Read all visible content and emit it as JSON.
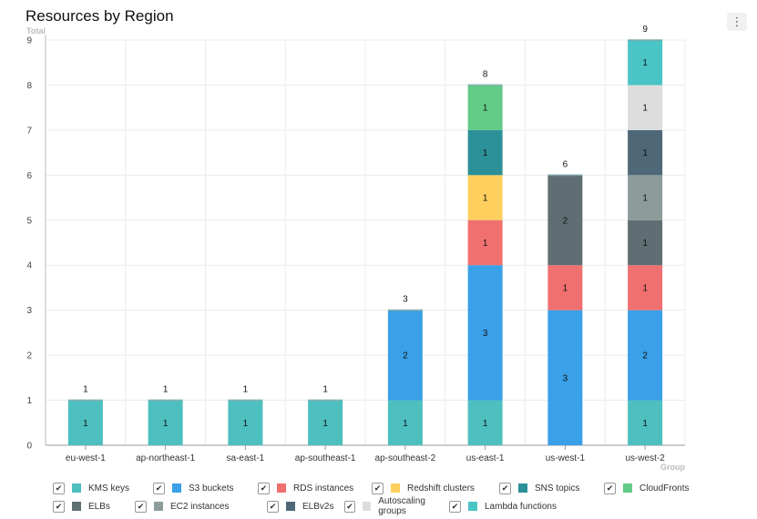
{
  "header": {
    "title": "Resources by Region",
    "menu_icon": "⋮"
  },
  "chart_data": {
    "type": "bar",
    "stacked": true,
    "title": "Resources by Region",
    "ylabel": "Total",
    "xlabel": "Group",
    "ylim": [
      0,
      9
    ],
    "yticks": [
      "0",
      "1",
      "2",
      "3",
      "4",
      "5",
      "6",
      "7",
      "8",
      "9"
    ],
    "grid": true,
    "legend_position": "bottom",
    "categories": [
      "eu-west-1",
      "ap-northeast-1",
      "sa-east-1",
      "ap-southeast-1",
      "ap-southeast-2",
      "us-east-1",
      "us-west-1",
      "us-west-2"
    ],
    "totals": [
      1,
      1,
      1,
      1,
      3,
      8,
      6,
      9
    ],
    "series": [
      {
        "name": "KMS keys",
        "color": "#4dbfbf",
        "values": [
          1,
          1,
          1,
          1,
          1,
          1,
          0,
          1
        ]
      },
      {
        "name": "S3 buckets",
        "color": "#3aa0e8",
        "values": [
          0,
          0,
          0,
          0,
          2,
          3,
          3,
          2
        ]
      },
      {
        "name": "RDS instances",
        "color": "#f07070",
        "values": [
          0,
          0,
          0,
          0,
          0,
          1,
          1,
          1
        ]
      },
      {
        "name": "Redshift clusters",
        "color": "#fecf5c",
        "values": [
          0,
          0,
          0,
          0,
          0,
          1,
          0,
          0
        ]
      },
      {
        "name": "SNS topics",
        "color": "#2b9097",
        "values": [
          0,
          0,
          0,
          0,
          0,
          1,
          0,
          0
        ]
      },
      {
        "name": "CloudFronts",
        "color": "#62cb87",
        "values": [
          0,
          0,
          0,
          0,
          0,
          1,
          0,
          0
        ]
      },
      {
        "name": "ELBs",
        "color": "#5e6e73",
        "values": [
          0,
          0,
          0,
          0,
          0,
          0,
          2,
          1
        ]
      },
      {
        "name": "EC2 instances",
        "color": "#8c9c9b",
        "values": [
          0,
          0,
          0,
          0,
          0,
          0,
          0,
          1
        ]
      },
      {
        "name": "ELBv2s",
        "color": "#4e6878",
        "values": [
          0,
          0,
          0,
          0,
          0,
          0,
          0,
          1
        ]
      },
      {
        "name": "Autoscaling groups",
        "color": "#dddddd",
        "values": [
          0,
          0,
          0,
          0,
          0,
          0,
          0,
          1
        ]
      },
      {
        "name": "Lambda functions",
        "color": "#4bc4c6",
        "values": [
          0,
          0,
          0,
          0,
          0,
          0,
          0,
          1
        ]
      }
    ]
  },
  "legend": {
    "checked_glyph": "✔",
    "rows": [
      [
        0,
        1,
        2,
        3,
        4,
        5
      ],
      [
        6,
        7,
        8,
        9,
        10
      ]
    ]
  }
}
